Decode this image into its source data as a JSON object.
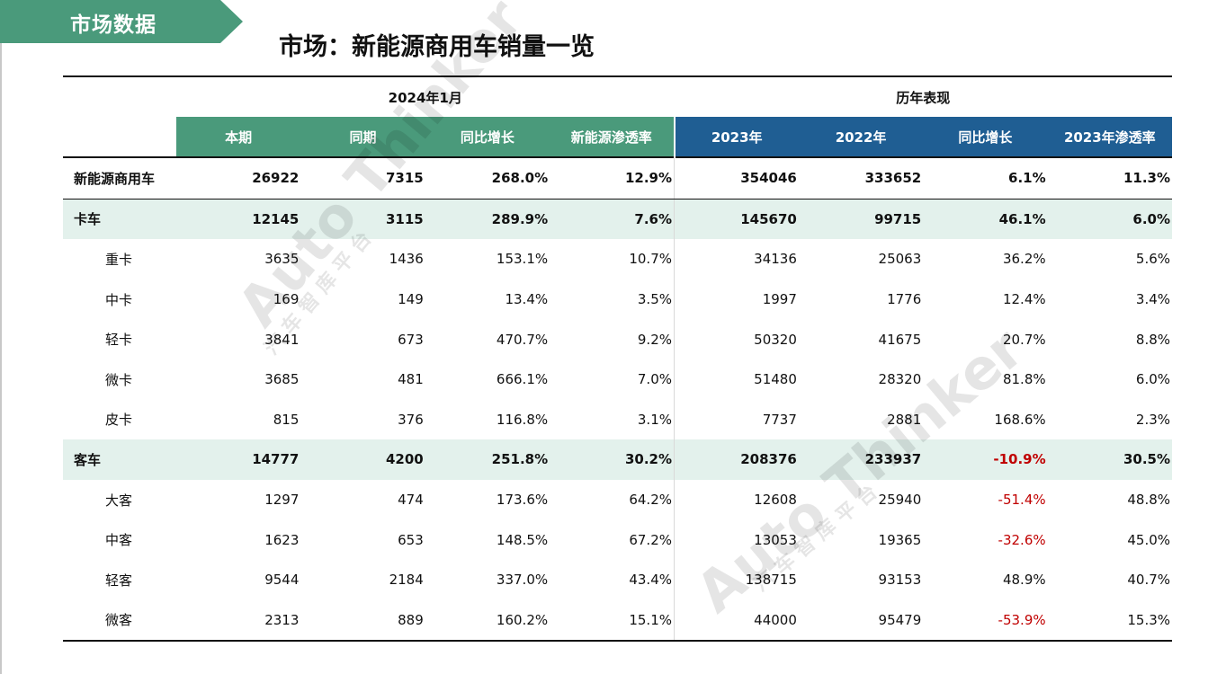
{
  "header": {
    "tab_label": "市场数据",
    "title": "市场：新能源商用车销量一览"
  },
  "table": {
    "groups": [
      {
        "label": "2024年1月"
      },
      {
        "label": "历年表现"
      }
    ],
    "columns": [
      "本期",
      "同期",
      "同比增长",
      "新能源渗透率",
      "2023年",
      "2022年",
      "同比增长",
      "2023年渗透率"
    ],
    "rows": [
      {
        "label": "新能源商用车",
        "values": [
          "26922",
          "7315",
          "268.0%",
          "12.9%",
          "354046",
          "333652",
          "6.1%",
          "11.3%"
        ]
      },
      {
        "label": "卡车",
        "values": [
          "12145",
          "3115",
          "289.9%",
          "7.6%",
          "145670",
          "99715",
          "46.1%",
          "6.0%"
        ]
      },
      {
        "label": "重卡",
        "values": [
          "3635",
          "1436",
          "153.1%",
          "10.7%",
          "34136",
          "25063",
          "36.2%",
          "5.6%"
        ]
      },
      {
        "label": "中卡",
        "values": [
          "169",
          "149",
          "13.4%",
          "3.5%",
          "1997",
          "1776",
          "12.4%",
          "3.4%"
        ]
      },
      {
        "label": "轻卡",
        "values": [
          "3841",
          "673",
          "470.7%",
          "9.2%",
          "50320",
          "41675",
          "20.7%",
          "8.8%"
        ]
      },
      {
        "label": "微卡",
        "values": [
          "3685",
          "481",
          "666.1%",
          "7.0%",
          "51480",
          "28320",
          "81.8%",
          "6.0%"
        ]
      },
      {
        "label": "皮卡",
        "values": [
          "815",
          "376",
          "116.8%",
          "3.1%",
          "7737",
          "2881",
          "168.6%",
          "2.3%"
        ]
      },
      {
        "label": "客车",
        "values": [
          "14777",
          "4200",
          "251.8%",
          "30.2%",
          "208376",
          "233937",
          "-10.9%",
          "30.5%"
        ]
      },
      {
        "label": "大客",
        "values": [
          "1297",
          "474",
          "173.6%",
          "64.2%",
          "12608",
          "25940",
          "-51.4%",
          "48.8%"
        ]
      },
      {
        "label": "中客",
        "values": [
          "1623",
          "653",
          "148.5%",
          "67.2%",
          "13053",
          "19365",
          "-32.6%",
          "45.0%"
        ]
      },
      {
        "label": "轻客",
        "values": [
          "9544",
          "2184",
          "337.0%",
          "43.4%",
          "138715",
          "93153",
          "48.9%",
          "40.7%"
        ]
      },
      {
        "label": "微客",
        "values": [
          "2313",
          "889",
          "160.2%",
          "15.1%",
          "44000",
          "95479",
          "-53.9%",
          "15.3%"
        ]
      }
    ]
  },
  "watermark": {
    "brand": "Auto Thinker",
    "subtitle": "汽 车 智 库 平 台"
  },
  "colors": {
    "green": "#4a9a7b",
    "blue": "#1f5e93",
    "light_green": "#e3f1ec",
    "negative": "#c00000"
  }
}
